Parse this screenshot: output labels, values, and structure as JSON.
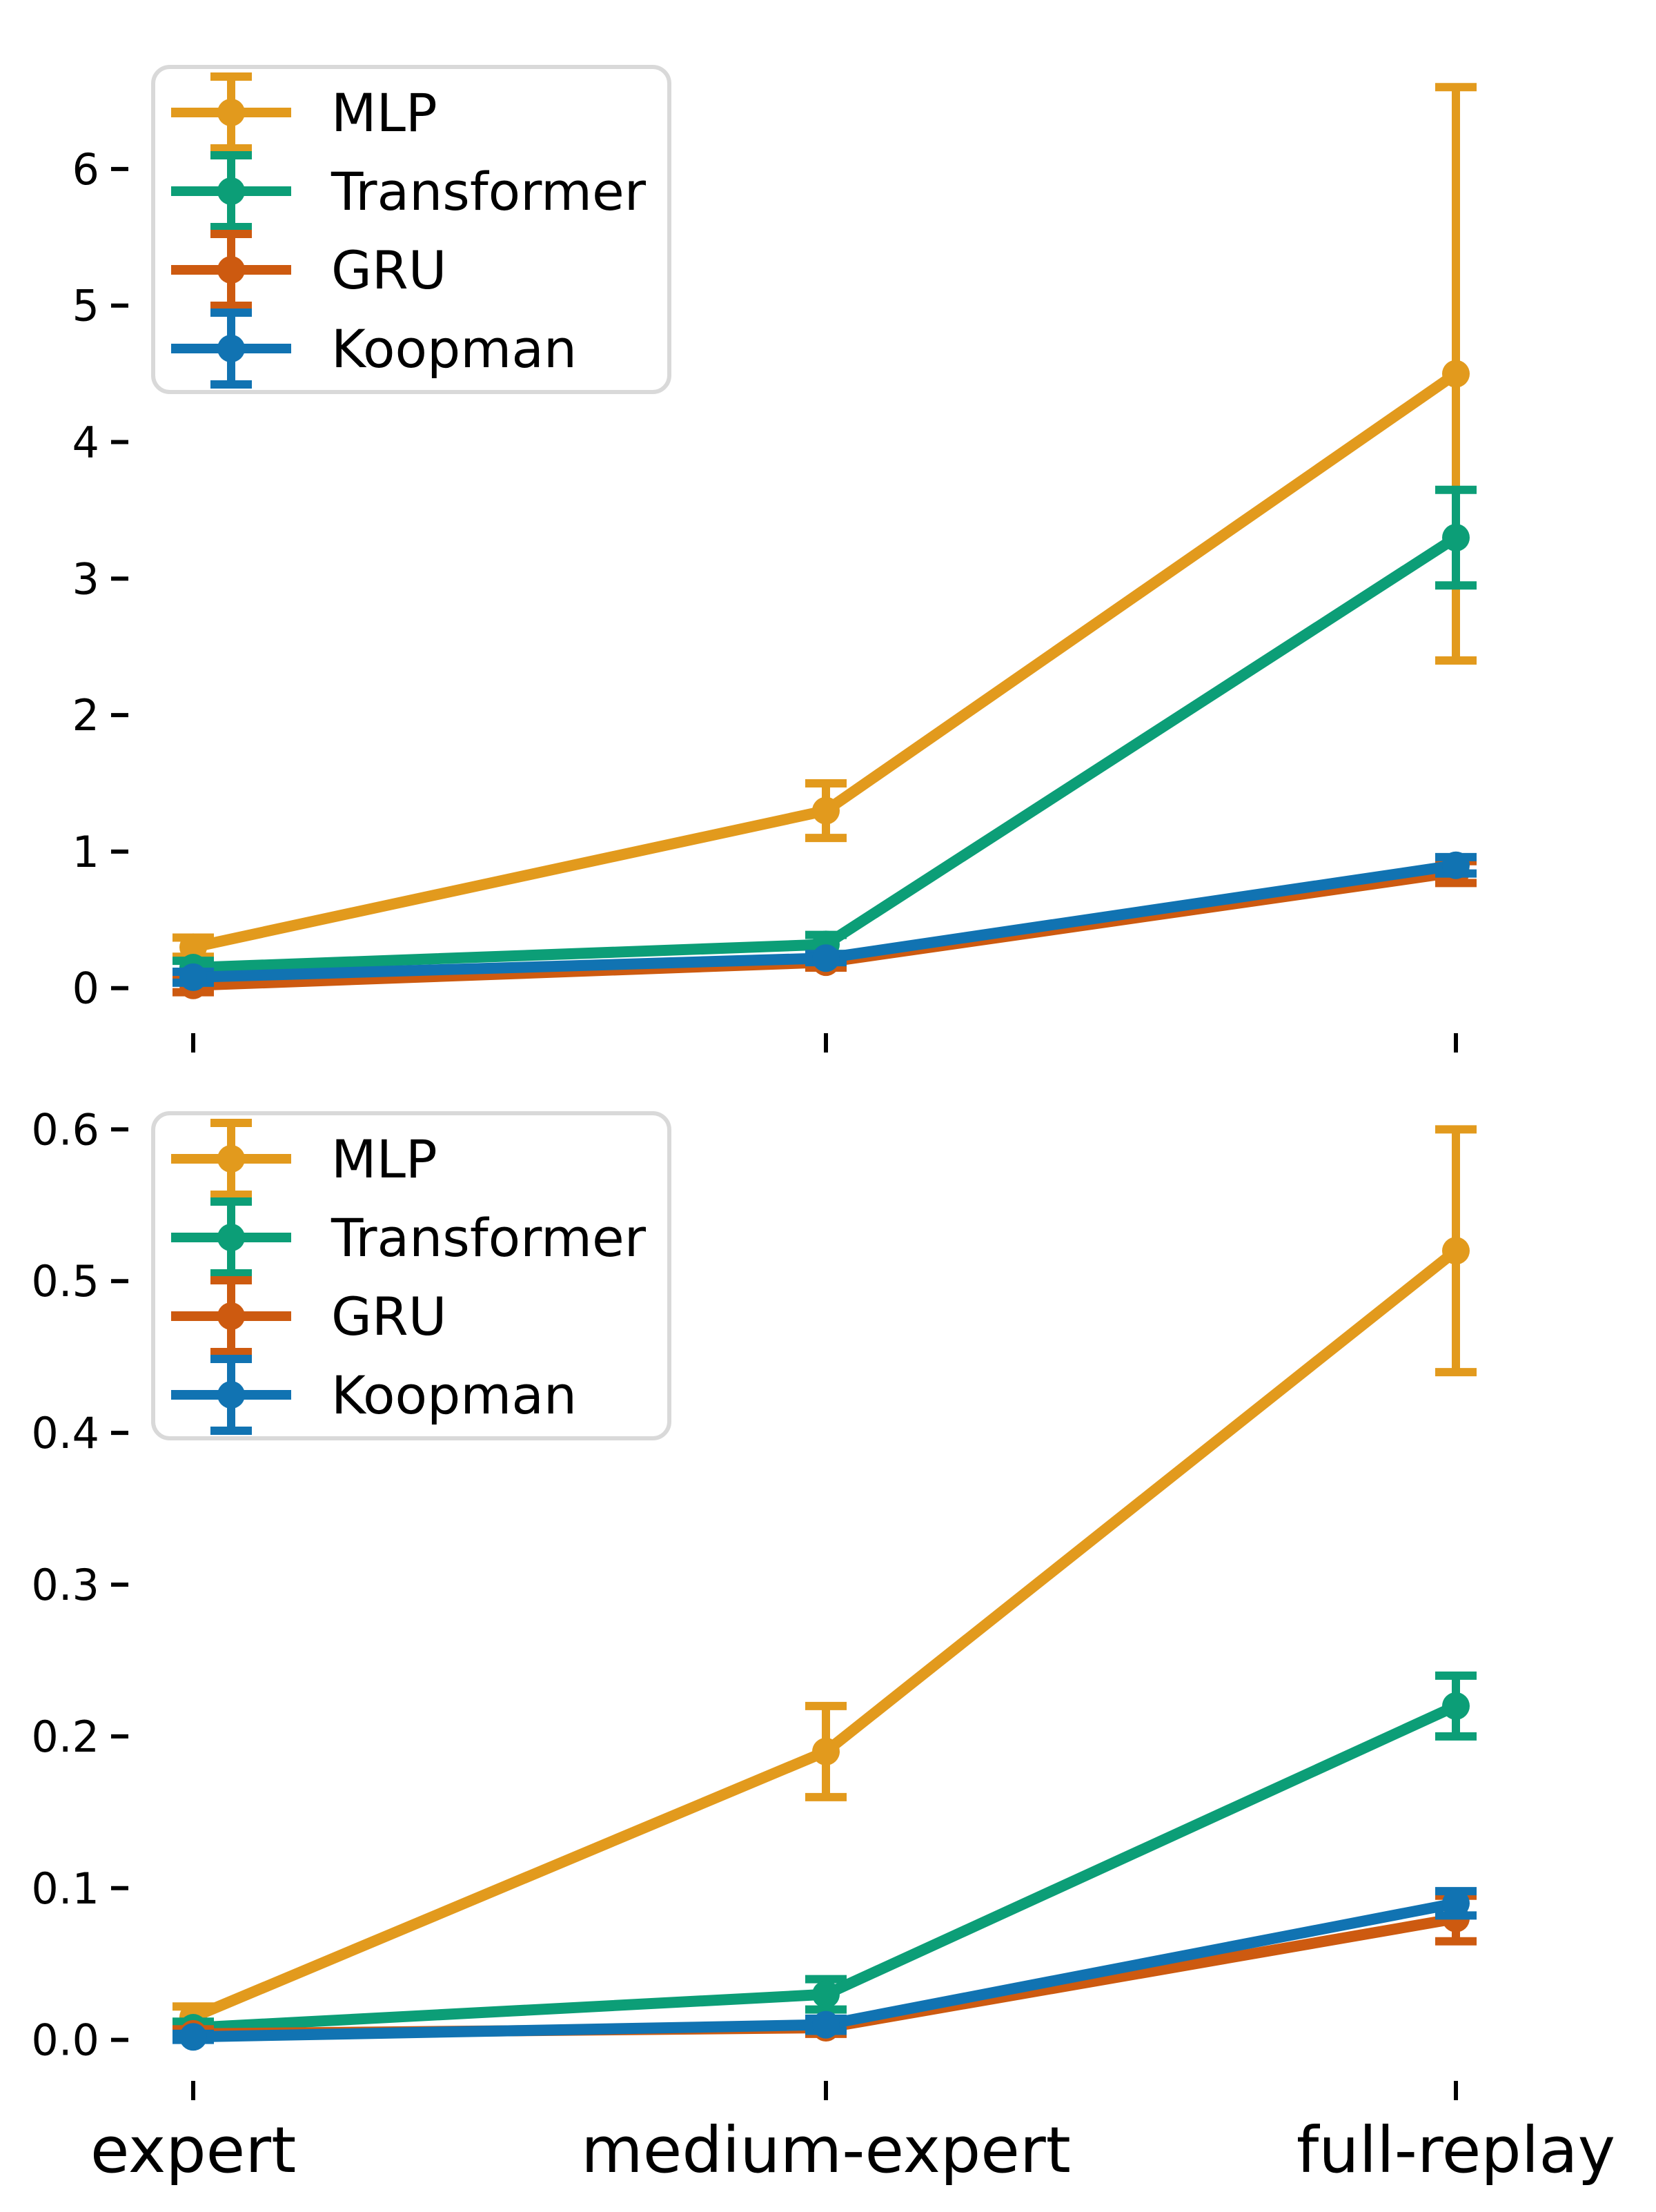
{
  "figure": {
    "background": "#ffffff",
    "spine_color": "#000000",
    "tick_color": "#000000",
    "legend_border_color": "#d9d9d9",
    "legend_background": "#ffffff"
  },
  "chart_data": [
    {
      "type": "line",
      "title": "",
      "xlabel": "",
      "ylabel": "",
      "categories": [
        "expert",
        "medium-expert",
        "full-replay"
      ],
      "series": [
        {
          "name": "MLP",
          "color": "#e29a1d",
          "values": [
            0.3,
            1.3,
            4.5
          ],
          "errors": [
            0.07,
            0.2,
            2.1
          ]
        },
        {
          "name": "Transformer",
          "color": "#0c9e77",
          "values": [
            0.15,
            0.32,
            3.3
          ],
          "errors": [
            0.05,
            0.07,
            0.35
          ]
        },
        {
          "name": "GRU",
          "color": "#cd5a10",
          "values": [
            0.02,
            0.19,
            0.85
          ],
          "errors": [
            0.05,
            0.04,
            0.08
          ]
        },
        {
          "name": "Koopman",
          "color": "#1173b2",
          "values": [
            0.08,
            0.22,
            0.9
          ],
          "errors": [
            0.04,
            0.03,
            0.06
          ]
        }
      ],
      "ylim": [
        -0.33,
        6.94
      ],
      "yticks": [
        0,
        1,
        2,
        3,
        4,
        5,
        6
      ],
      "ytick_labels": [
        "0",
        "1",
        "2",
        "3",
        "4",
        "5",
        "6"
      ],
      "x_tick_labels_visible": false,
      "grid": false,
      "legend": {
        "position": "upper left",
        "entries": [
          "MLP",
          "Transformer",
          "GRU",
          "Koopman"
        ]
      }
    },
    {
      "type": "line",
      "title": "",
      "xlabel": "",
      "ylabel": "",
      "categories": [
        "expert",
        "medium-expert",
        "full-replay"
      ],
      "series": [
        {
          "name": "MLP",
          "color": "#e29a1d",
          "values": [
            0.015,
            0.19,
            0.52
          ],
          "errors": [
            0.007,
            0.03,
            0.08
          ]
        },
        {
          "name": "Transformer",
          "color": "#0c9e77",
          "values": [
            0.008,
            0.03,
            0.22
          ],
          "errors": [
            0.004,
            0.01,
            0.02
          ]
        },
        {
          "name": "GRU",
          "color": "#cd5a10",
          "values": [
            0.004,
            0.008,
            0.08
          ],
          "errors": [
            0.003,
            0.004,
            0.015
          ]
        },
        {
          "name": "Koopman",
          "color": "#1173b2",
          "values": [
            0.002,
            0.01,
            0.09
          ],
          "errors": [
            0.002,
            0.004,
            0.008
          ]
        }
      ],
      "ylim": [
        -0.027,
        0.627
      ],
      "yticks": [
        0,
        0.1,
        0.2,
        0.3,
        0.4,
        0.5,
        0.6
      ],
      "ytick_labels": [
        "0.0",
        "0.1",
        "0.2",
        "0.3",
        "0.4",
        "0.5",
        "0.6"
      ],
      "x_tick_labels_visible": true,
      "grid": false,
      "legend": {
        "position": "upper left",
        "entries": [
          "MLP",
          "Transformer",
          "GRU",
          "Koopman"
        ]
      }
    }
  ]
}
